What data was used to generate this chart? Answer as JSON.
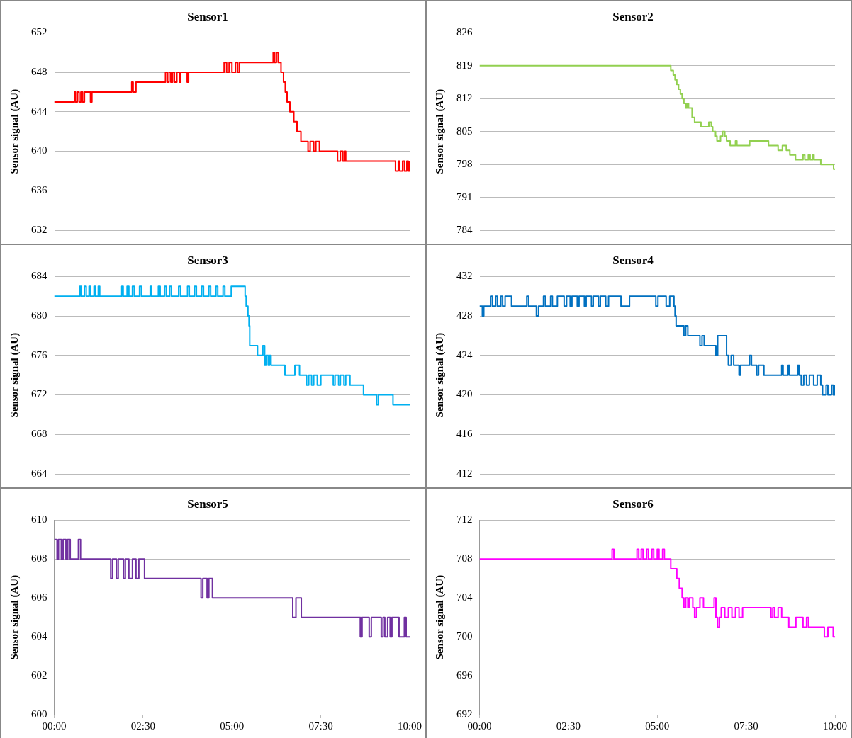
{
  "chart_data": [
    {
      "type": "step",
      "title": "Sensor1",
      "ylabel": "Sensor signal (AU)",
      "xlim": [
        0,
        10
      ],
      "ylim": [
        632,
        652
      ],
      "yticks": [
        632,
        636,
        640,
        644,
        648,
        652
      ],
      "grid": "y",
      "tick_labels": "y",
      "series": [
        {
          "color": "#ff0000",
          "x": [
            0,
            0.57,
            0.6,
            0.65,
            0.7,
            0.75,
            0.8,
            0.85,
            1.02,
            1.06,
            2.18,
            2.22,
            2.3,
            3.13,
            3.18,
            3.23,
            3.28,
            3.33,
            3.38,
            3.45,
            3.52,
            3.56,
            3.74,
            3.78,
            4.78,
            4.85,
            4.92,
            5.0,
            5.1,
            5.16,
            5.21,
            6.16,
            6.2,
            6.25,
            6.3,
            6.38,
            6.45,
            6.5,
            6.55,
            6.63,
            6.74,
            6.83,
            6.94,
            7.14,
            7.2,
            7.3,
            7.36,
            7.46,
            7.97,
            8.05,
            8.12,
            8.18,
            8.2,
            9.6,
            9.68,
            9.72,
            9.8,
            9.85,
            9.92,
            9.96,
            10
          ],
          "values": [
            645,
            646,
            645,
            646,
            645,
            646,
            645,
            646,
            645,
            646,
            647,
            646,
            647,
            648,
            647,
            648,
            647,
            648,
            647,
            648,
            647,
            648,
            647,
            648,
            649,
            648,
            649,
            648,
            649,
            648,
            649,
            650,
            649,
            650,
            649,
            648,
            647,
            646,
            645,
            644,
            643,
            642,
            641,
            640,
            641,
            640,
            641,
            640,
            639,
            640,
            639,
            640,
            639,
            638,
            639,
            638,
            639,
            638,
            639,
            638,
            639
          ]
        }
      ]
    },
    {
      "type": "step",
      "title": "Sensor2",
      "ylabel": "Sensor signal (AU)",
      "xlim": [
        0,
        10
      ],
      "ylim": [
        784,
        826
      ],
      "yticks": [
        784,
        791,
        798,
        805,
        812,
        819,
        826
      ],
      "grid": "y",
      "tick_labels": "y",
      "series": [
        {
          "color": "#92d050",
          "x": [
            0,
            5.38,
            5.45,
            5.5,
            5.55,
            5.6,
            5.65,
            5.7,
            5.75,
            5.8,
            5.84,
            5.88,
            5.98,
            6.05,
            6.23,
            6.45,
            6.52,
            6.56,
            6.64,
            6.68,
            6.78,
            6.84,
            6.9,
            6.95,
            7.05,
            7.2,
            7.24,
            7.6,
            8.13,
            8.4,
            8.52,
            8.63,
            8.73,
            8.89,
            9.1,
            9.15,
            9.25,
            9.3,
            9.38,
            9.41,
            9.6,
            9.96,
            10
          ],
          "values": [
            819,
            818,
            817,
            816,
            815,
            814,
            813,
            812,
            811,
            810,
            811,
            810,
            808,
            807,
            806,
            807,
            806,
            805,
            804,
            803,
            804,
            805,
            804,
            803,
            802,
            803,
            802,
            803,
            802,
            801,
            802,
            801,
            800,
            799,
            800,
            799,
            800,
            799,
            800,
            799,
            798,
            797,
            797
          ]
        }
      ]
    },
    {
      "type": "step",
      "title": "Sensor3",
      "ylabel": "Sensor signal (AU)",
      "xlim": [
        0,
        10
      ],
      "ylim": [
        664,
        684
      ],
      "yticks": [
        664,
        668,
        672,
        676,
        680,
        684
      ],
      "grid": "y",
      "tick_labels": "y",
      "series": [
        {
          "color": "#00b0f0",
          "x": [
            0,
            0.72,
            0.76,
            0.85,
            0.9,
            0.98,
            1.02,
            1.12,
            1.16,
            1.24,
            1.28,
            1.9,
            1.94,
            2.05,
            2.1,
            2.2,
            2.25,
            2.4,
            2.45,
            2.7,
            2.74,
            2.93,
            2.98,
            3.1,
            3.15,
            3.25,
            3.3,
            3.5,
            3.55,
            3.75,
            3.8,
            3.95,
            4.0,
            4.15,
            4.2,
            4.35,
            4.4,
            4.55,
            4.6,
            4.75,
            4.8,
            4.98,
            5.02,
            5.37,
            5.4,
            5.45,
            5.48,
            5.5,
            5.54,
            5.72,
            5.87,
            5.92,
            5.96,
            6.02,
            6.06,
            6.1,
            6.49,
            6.77,
            6.9,
            7.1,
            7.16,
            7.24,
            7.3,
            7.4,
            7.5,
            7.85,
            7.9,
            8.0,
            8.05,
            8.15,
            8.2,
            8.32,
            8.7,
            9.07,
            9.12,
            9.53,
            10
          ],
          "values": [
            682,
            683,
            682,
            683,
            682,
            683,
            682,
            683,
            682,
            683,
            682,
            683,
            682,
            683,
            682,
            683,
            682,
            683,
            682,
            683,
            682,
            683,
            682,
            683,
            682,
            683,
            682,
            683,
            682,
            683,
            682,
            683,
            682,
            683,
            682,
            683,
            682,
            683,
            682,
            683,
            682,
            683,
            683,
            682,
            681,
            680,
            679,
            677,
            677,
            676,
            677,
            675,
            676,
            675,
            676,
            675,
            674,
            675,
            674,
            673,
            674,
            673,
            674,
            673,
            674,
            673,
            674,
            673,
            674,
            673,
            674,
            673,
            672,
            671,
            672,
            671,
            671
          ]
        }
      ]
    },
    {
      "type": "step",
      "title": "Sensor4",
      "ylabel": "Sensor signal (AU)",
      "xlim": [
        0,
        10
      ],
      "ylim": [
        412,
        432
      ],
      "yticks": [
        412,
        416,
        420,
        424,
        428,
        432
      ],
      "grid": "y",
      "tick_labels": "y",
      "series": [
        {
          "color": "#0070c0",
          "x": [
            0,
            0.08,
            0.12,
            0.31,
            0.36,
            0.45,
            0.5,
            0.6,
            0.65,
            0.72,
            0.9,
            1.33,
            1.38,
            1.6,
            1.66,
            1.8,
            1.85,
            2.0,
            2.05,
            2.19,
            2.38,
            2.45,
            2.55,
            2.6,
            2.75,
            2.8,
            2.95,
            3.0,
            3.15,
            3.2,
            3.35,
            3.4,
            3.55,
            3.63,
            3.98,
            4.22,
            4.96,
            5.02,
            5.25,
            5.35,
            5.47,
            5.5,
            5.53,
            5.75,
            5.8,
            5.86,
            5.92,
            6.2,
            6.26,
            6.32,
            6.4,
            6.65,
            6.7,
            6.95,
            7.0,
            7.08,
            7.15,
            7.3,
            7.34,
            7.6,
            7.65,
            7.8,
            7.85,
            8.0,
            8.5,
            8.54,
            8.68,
            8.72,
            8.95,
            8.99,
            9.05,
            9.12,
            9.2,
            9.28,
            9.4,
            9.5,
            9.6,
            9.65,
            9.75,
            9.8,
            9.9,
            9.95,
            10
          ],
          "values": [
            429,
            428,
            429,
            430,
            429,
            430,
            429,
            430,
            429,
            430,
            429,
            430,
            429,
            428,
            429,
            430,
            429,
            430,
            429,
            430,
            429,
            430,
            429,
            430,
            429,
            430,
            429,
            430,
            429,
            430,
            429,
            430,
            429,
            430,
            429,
            430,
            429,
            430,
            429,
            430,
            429,
            428,
            427,
            426,
            427,
            426,
            426,
            425,
            426,
            425,
            425,
            424,
            426,
            424,
            423,
            424,
            423,
            422,
            423,
            424,
            423,
            422,
            423,
            422,
            423,
            422,
            423,
            422,
            423,
            422,
            421,
            422,
            421,
            422,
            421,
            422,
            421,
            420,
            421,
            420,
            421,
            420,
            421
          ]
        }
      ]
    },
    {
      "type": "step",
      "title": "Sensor5",
      "ylabel": "Sensor signal (AU)",
      "xlim": [
        0,
        10
      ],
      "xticks": [
        {
          "value": 0,
          "label": "00:00"
        },
        {
          "value": 2.5,
          "label": "02:30"
        },
        {
          "value": 5,
          "label": "05:00"
        },
        {
          "value": 7.5,
          "label": "07:30"
        },
        {
          "value": 10,
          "label": "10:00"
        }
      ],
      "ylim": [
        600,
        610
      ],
      "yticks": [
        600,
        602,
        604,
        606,
        608,
        610
      ],
      "grid": "y",
      "series": [
        {
          "color": "#7030a0",
          "x": [
            0,
            0.08,
            0.12,
            0.2,
            0.25,
            0.33,
            0.38,
            0.45,
            0.68,
            0.74,
            1.59,
            1.64,
            1.75,
            1.8,
            1.95,
            2.0,
            2.1,
            2.2,
            2.3,
            2.38,
            2.54,
            4.13,
            4.18,
            4.3,
            4.35,
            4.45,
            4.58,
            6.71,
            6.8,
            6.95,
            7.08,
            8.61,
            8.66,
            8.86,
            8.92,
            9.2,
            9.25,
            9.3,
            9.38,
            9.45,
            9.5,
            9.7,
            9.85,
            9.9,
            10
          ],
          "values": [
            609,
            608,
            609,
            608,
            609,
            608,
            609,
            608,
            609,
            608,
            607,
            608,
            607,
            608,
            607,
            608,
            607,
            608,
            607,
            608,
            607,
            606,
            607,
            606,
            607,
            606,
            606,
            605,
            606,
            605,
            605,
            604,
            605,
            604,
            605,
            604,
            605,
            604,
            605,
            604,
            605,
            604,
            605,
            604,
            604
          ]
        }
      ]
    },
    {
      "type": "step",
      "title": "Sensor6",
      "ylabel": "Sensor signal (AU)",
      "xlim": [
        0,
        10
      ],
      "xticks": [
        {
          "value": 0,
          "label": "00:00"
        },
        {
          "value": 2.5,
          "label": "02:30"
        },
        {
          "value": 5,
          "label": "05:00"
        },
        {
          "value": 7.5,
          "label": "07:30"
        },
        {
          "value": 10,
          "label": "10:00"
        }
      ],
      "ylim": [
        692,
        712
      ],
      "yticks": [
        692,
        696,
        700,
        704,
        708,
        712
      ],
      "grid": "y",
      "series": [
        {
          "color": "#ff00ff",
          "x": [
            0,
            3.73,
            3.78,
            4.43,
            4.48,
            4.55,
            4.6,
            4.7,
            4.75,
            4.85,
            4.9,
            5.0,
            5.05,
            5.15,
            5.2,
            5.38,
            5.55,
            5.62,
            5.7,
            5.75,
            5.8,
            5.86,
            5.9,
            6.0,
            6.05,
            6.1,
            6.2,
            6.3,
            6.6,
            6.65,
            6.7,
            6.75,
            6.8,
            6.9,
            7.0,
            7.1,
            7.2,
            7.3,
            7.4,
            7.55,
            8.2,
            8.25,
            8.3,
            8.4,
            8.5,
            8.7,
            8.9,
            9.1,
            9.2,
            9.25,
            9.7,
            9.8,
            9.95,
            10
          ],
          "values": [
            708,
            709,
            708,
            709,
            708,
            709,
            708,
            709,
            708,
            709,
            708,
            709,
            708,
            709,
            708,
            707,
            706,
            705,
            704,
            703,
            704,
            703,
            704,
            703,
            702,
            703,
            704,
            703,
            704,
            702,
            701,
            702,
            703,
            702,
            703,
            702,
            703,
            702,
            703,
            703,
            702,
            703,
            702,
            703,
            702,
            701,
            702,
            701,
            702,
            701,
            700,
            701,
            700,
            700
          ]
        }
      ]
    }
  ]
}
